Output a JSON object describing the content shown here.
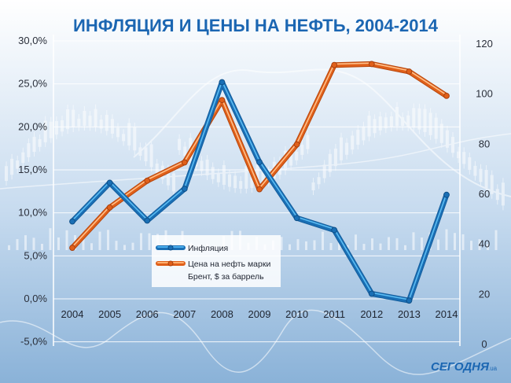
{
  "colors": {
    "title": "#1b66b2",
    "inflation": "#2a8fd4",
    "oil": "#f07a2a",
    "brand": "#1b66b2"
  },
  "brand": {
    "name": "СЕГОДНЯ",
    "suffix": ".ua"
  },
  "chart_data": {
    "type": "line",
    "title": "ИНФЛЯЦИЯ И ЦЕНЫ НА НЕФТЬ, 2004-2014",
    "categories": [
      "2004",
      "2005",
      "2006",
      "2007",
      "2008",
      "2009",
      "2010",
      "2011",
      "2012",
      "2013",
      "2014"
    ],
    "y_left": {
      "ticks": [
        "30,0%",
        "25,0%",
        "20,0%",
        "15,0%",
        "10,0%",
        "5,0%",
        "0,0%",
        "-5,0%"
      ],
      "tick_values": [
        30,
        25,
        20,
        15,
        10,
        5,
        0,
        -5
      ],
      "range": [
        -5,
        30
      ]
    },
    "y_right": {
      "ticks": [
        "120",
        "100",
        "80",
        "60",
        "40",
        "20",
        "0"
      ],
      "tick_values": [
        120,
        100,
        80,
        60,
        40,
        20,
        0
      ],
      "range": [
        0,
        120
      ]
    },
    "series": [
      {
        "name": "Инфляция",
        "axis": "left",
        "values": [
          9.0,
          13.5,
          9.1,
          12.8,
          25.2,
          15.9,
          9.4,
          8.0,
          0.6,
          -0.2,
          12.1
        ]
      },
      {
        "name": "Цена на нефть марки Брент, $ за баррель",
        "legend_lines": [
          "Цена на нефть марки",
          "Брент, $ за баррель"
        ],
        "axis": "right",
        "values": [
          38.3,
          54.4,
          65.1,
          72.4,
          97.3,
          61.7,
          79.6,
          111.3,
          111.7,
          108.7,
          99.0
        ]
      }
    ]
  }
}
